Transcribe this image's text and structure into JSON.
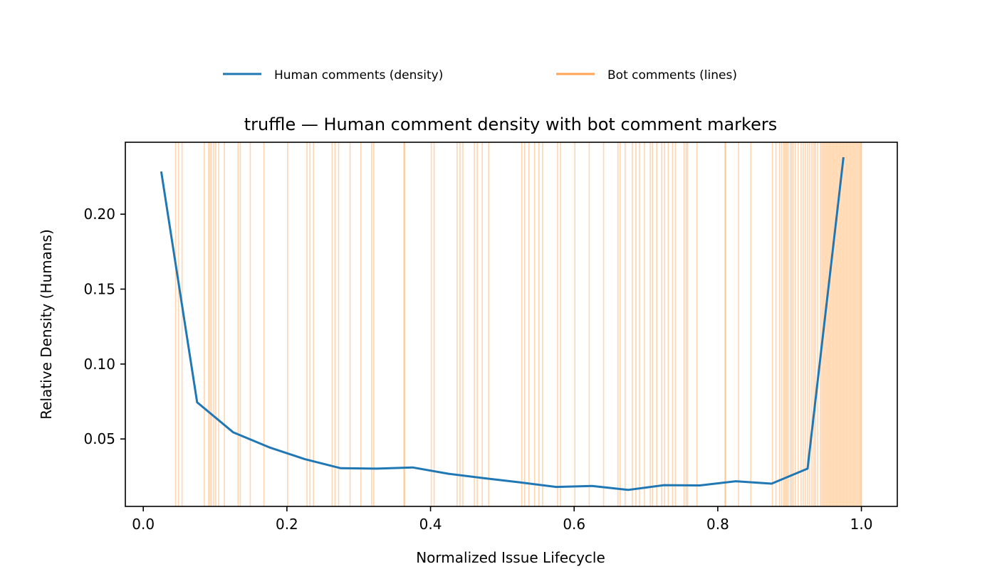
{
  "chart_data": {
    "type": "line",
    "title": "truffle — Human comment density with bot comment markers",
    "xlabel": "Normalized Issue Lifecycle",
    "ylabel": "Relative Density (Humans)",
    "xlim": [
      -0.025,
      1.05
    ],
    "ylim": [
      0.005,
      0.248
    ],
    "x_ticks": [
      0.0,
      0.2,
      0.4,
      0.6,
      0.8,
      1.0
    ],
    "x_tick_labels": [
      "0.0",
      "0.2",
      "0.4",
      "0.6",
      "0.8",
      "1.0"
    ],
    "y_ticks": [
      0.05,
      0.1,
      0.15,
      0.2
    ],
    "y_tick_labels": [
      "0.05",
      "0.10",
      "0.15",
      "0.20"
    ],
    "grid": false,
    "legend_placement": "top-center",
    "series": [
      {
        "name": "Human comments (density)",
        "kind": "line",
        "color": "#1f77b4",
        "x": [
          0.025,
          0.075,
          0.125,
          0.175,
          0.225,
          0.275,
          0.325,
          0.375,
          0.425,
          0.475,
          0.525,
          0.575,
          0.625,
          0.675,
          0.725,
          0.775,
          0.825,
          0.875,
          0.925,
          0.975
        ],
        "y": [
          0.2285,
          0.0745,
          0.0545,
          0.0445,
          0.0365,
          0.0305,
          0.0302,
          0.031,
          0.0268,
          0.0238,
          0.021,
          0.018,
          0.0186,
          0.016,
          0.0192,
          0.019,
          0.0218,
          0.0202,
          0.0302,
          0.238
        ]
      },
      {
        "name": "Bot comments (lines)",
        "kind": "vlines",
        "color": "#ff7f0e",
        "x": [
          0.045,
          0.049,
          0.054,
          0.085,
          0.091,
          0.093,
          0.095,
          0.098,
          0.101,
          0.105,
          0.113,
          0.132,
          0.135,
          0.149,
          0.168,
          0.201,
          0.228,
          0.232,
          0.237,
          0.263,
          0.267,
          0.272,
          0.288,
          0.303,
          0.318,
          0.321,
          0.363,
          0.364,
          0.401,
          0.405,
          0.437,
          0.441,
          0.445,
          0.461,
          0.465,
          0.472,
          0.481,
          0.527,
          0.531,
          0.537,
          0.545,
          0.551,
          0.556,
          0.577,
          0.581,
          0.601,
          0.621,
          0.641,
          0.661,
          0.664,
          0.671,
          0.681,
          0.686,
          0.691,
          0.698,
          0.706,
          0.709,
          0.715,
          0.722,
          0.726,
          0.731,
          0.737,
          0.741,
          0.753,
          0.756,
          0.758,
          0.771,
          0.81,
          0.811,
          0.829,
          0.846,
          0.876,
          0.881,
          0.886,
          0.889,
          0.892,
          0.894,
          0.896,
          0.898,
          0.901,
          0.903,
          0.905,
          0.908,
          0.912,
          0.916,
          0.919,
          0.922,
          0.925,
          0.928,
          0.931,
          0.934,
          0.936,
          0.939,
          0.943,
          0.945,
          0.947,
          0.949,
          0.951,
          0.953,
          0.955,
          0.957,
          0.959,
          0.961,
          0.963,
          0.965,
          0.967,
          0.969,
          0.971,
          0.973,
          0.975,
          0.977,
          0.979,
          0.981,
          0.983,
          0.985,
          0.987,
          0.989,
          0.991,
          0.993,
          0.995,
          0.997,
          0.999,
          1.0
        ]
      }
    ]
  }
}
